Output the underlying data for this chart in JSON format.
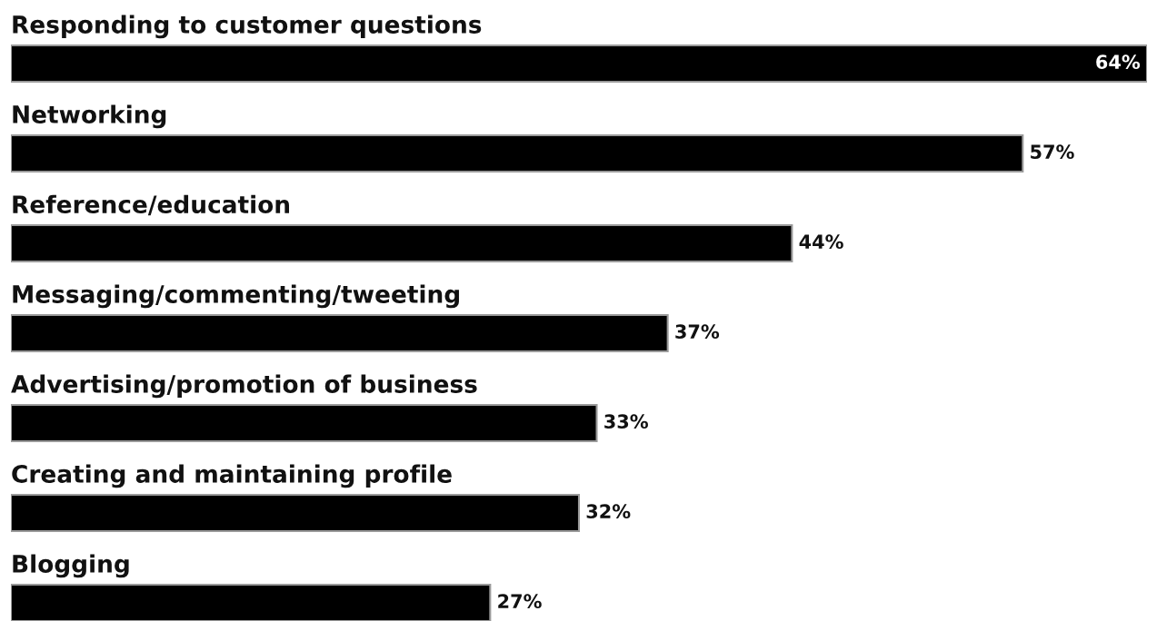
{
  "chart_data": {
    "type": "bar",
    "orientation": "horizontal",
    "categories": [
      "Responding to customer questions",
      "Networking",
      "Reference/education",
      "Messaging/commenting/tweeting",
      "Advertising/promotion of business",
      "Creating and maintaining profile",
      "Blogging"
    ],
    "values": [
      64,
      57,
      44,
      37,
      33,
      32,
      27
    ],
    "value_labels": [
      "64%",
      "57%",
      "44%",
      "37%",
      "33%",
      "32%",
      "27%"
    ],
    "color": "#000000",
    "grid": false,
    "legend": false,
    "tick_labels": false
  }
}
